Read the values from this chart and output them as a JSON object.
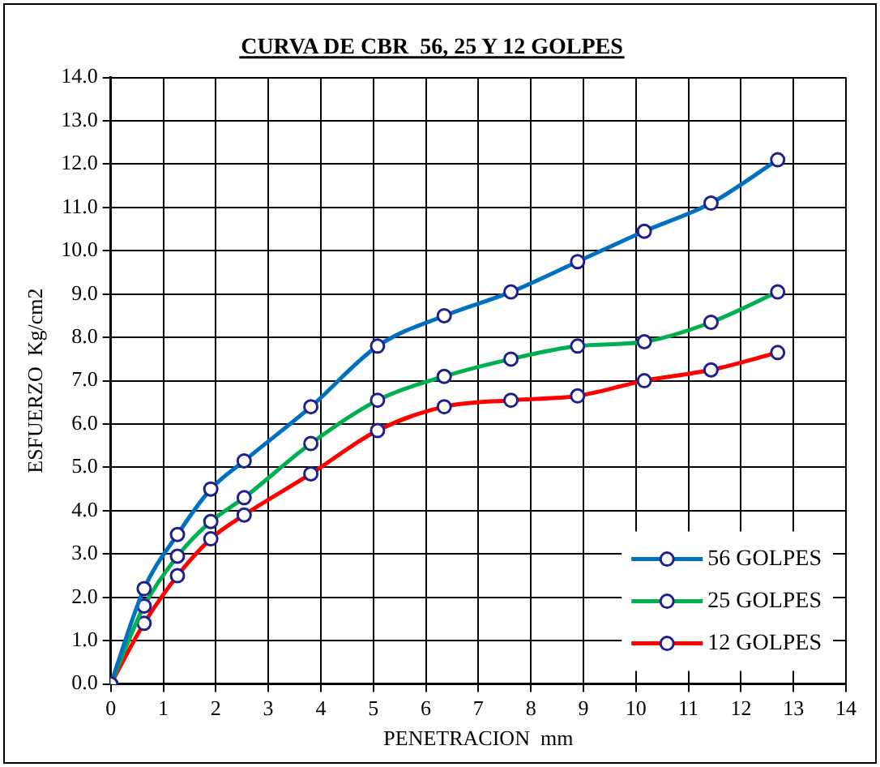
{
  "chart_data": {
    "type": "line",
    "title": "CURVA DE CBR  56, 25 Y 12 GOLPES",
    "xlabel": "PENETRACION  mm",
    "ylabel": "ESFUERZO  Kg/cm2",
    "x": [
      0,
      0.635,
      1.27,
      1.905,
      2.54,
      3.81,
      5.08,
      6.35,
      7.62,
      8.89,
      10.16,
      11.43,
      12.7
    ],
    "series": [
      {
        "name": "56 GOLPES",
        "color": "#0070c0",
        "values": [
          0,
          2.2,
          3.45,
          4.5,
          5.15,
          6.4,
          7.8,
          8.5,
          9.05,
          9.75,
          10.45,
          11.1,
          12.1
        ]
      },
      {
        "name": "25 GOLPES",
        "color": "#00b050",
        "values": [
          0,
          1.8,
          2.95,
          3.75,
          4.3,
          5.55,
          6.55,
          7.1,
          7.5,
          7.8,
          7.9,
          8.35,
          9.05
        ]
      },
      {
        "name": "12 GOLPES",
        "color": "#ff0000",
        "values": [
          0,
          1.4,
          2.5,
          3.35,
          3.9,
          4.85,
          5.85,
          6.4,
          6.55,
          6.65,
          7.0,
          7.25,
          7.65
        ]
      }
    ],
    "xlim": [
      0,
      14
    ],
    "xticks": [
      0,
      1,
      2,
      3,
      4,
      5,
      6,
      7,
      8,
      9,
      10,
      11,
      12,
      13,
      14
    ],
    "ylim": [
      0,
      14
    ],
    "yticks": [
      {
        "value": 0,
        "label": "0.0"
      },
      {
        "value": 1,
        "label": "1.0"
      },
      {
        "value": 2,
        "label": "2.0"
      },
      {
        "value": 3,
        "label": "3.0"
      },
      {
        "value": 4,
        "label": "4.0"
      },
      {
        "value": 5,
        "label": "5.0"
      },
      {
        "value": 6,
        "label": "6.0"
      },
      {
        "value": 7,
        "label": "7.0"
      },
      {
        "value": 8,
        "label": "8.0"
      },
      {
        "value": 9,
        "label": "9.0"
      },
      {
        "value": 10,
        "label": "10.0"
      },
      {
        "value": 11,
        "label": "11.0"
      },
      {
        "value": 12,
        "label": "12.0"
      },
      {
        "value": 13,
        "label": "13.0"
      },
      {
        "value": 14,
        "label": "14.0"
      }
    ],
    "grid": true,
    "legend": "bottom right",
    "marker": "circle",
    "line_style": "solid"
  }
}
